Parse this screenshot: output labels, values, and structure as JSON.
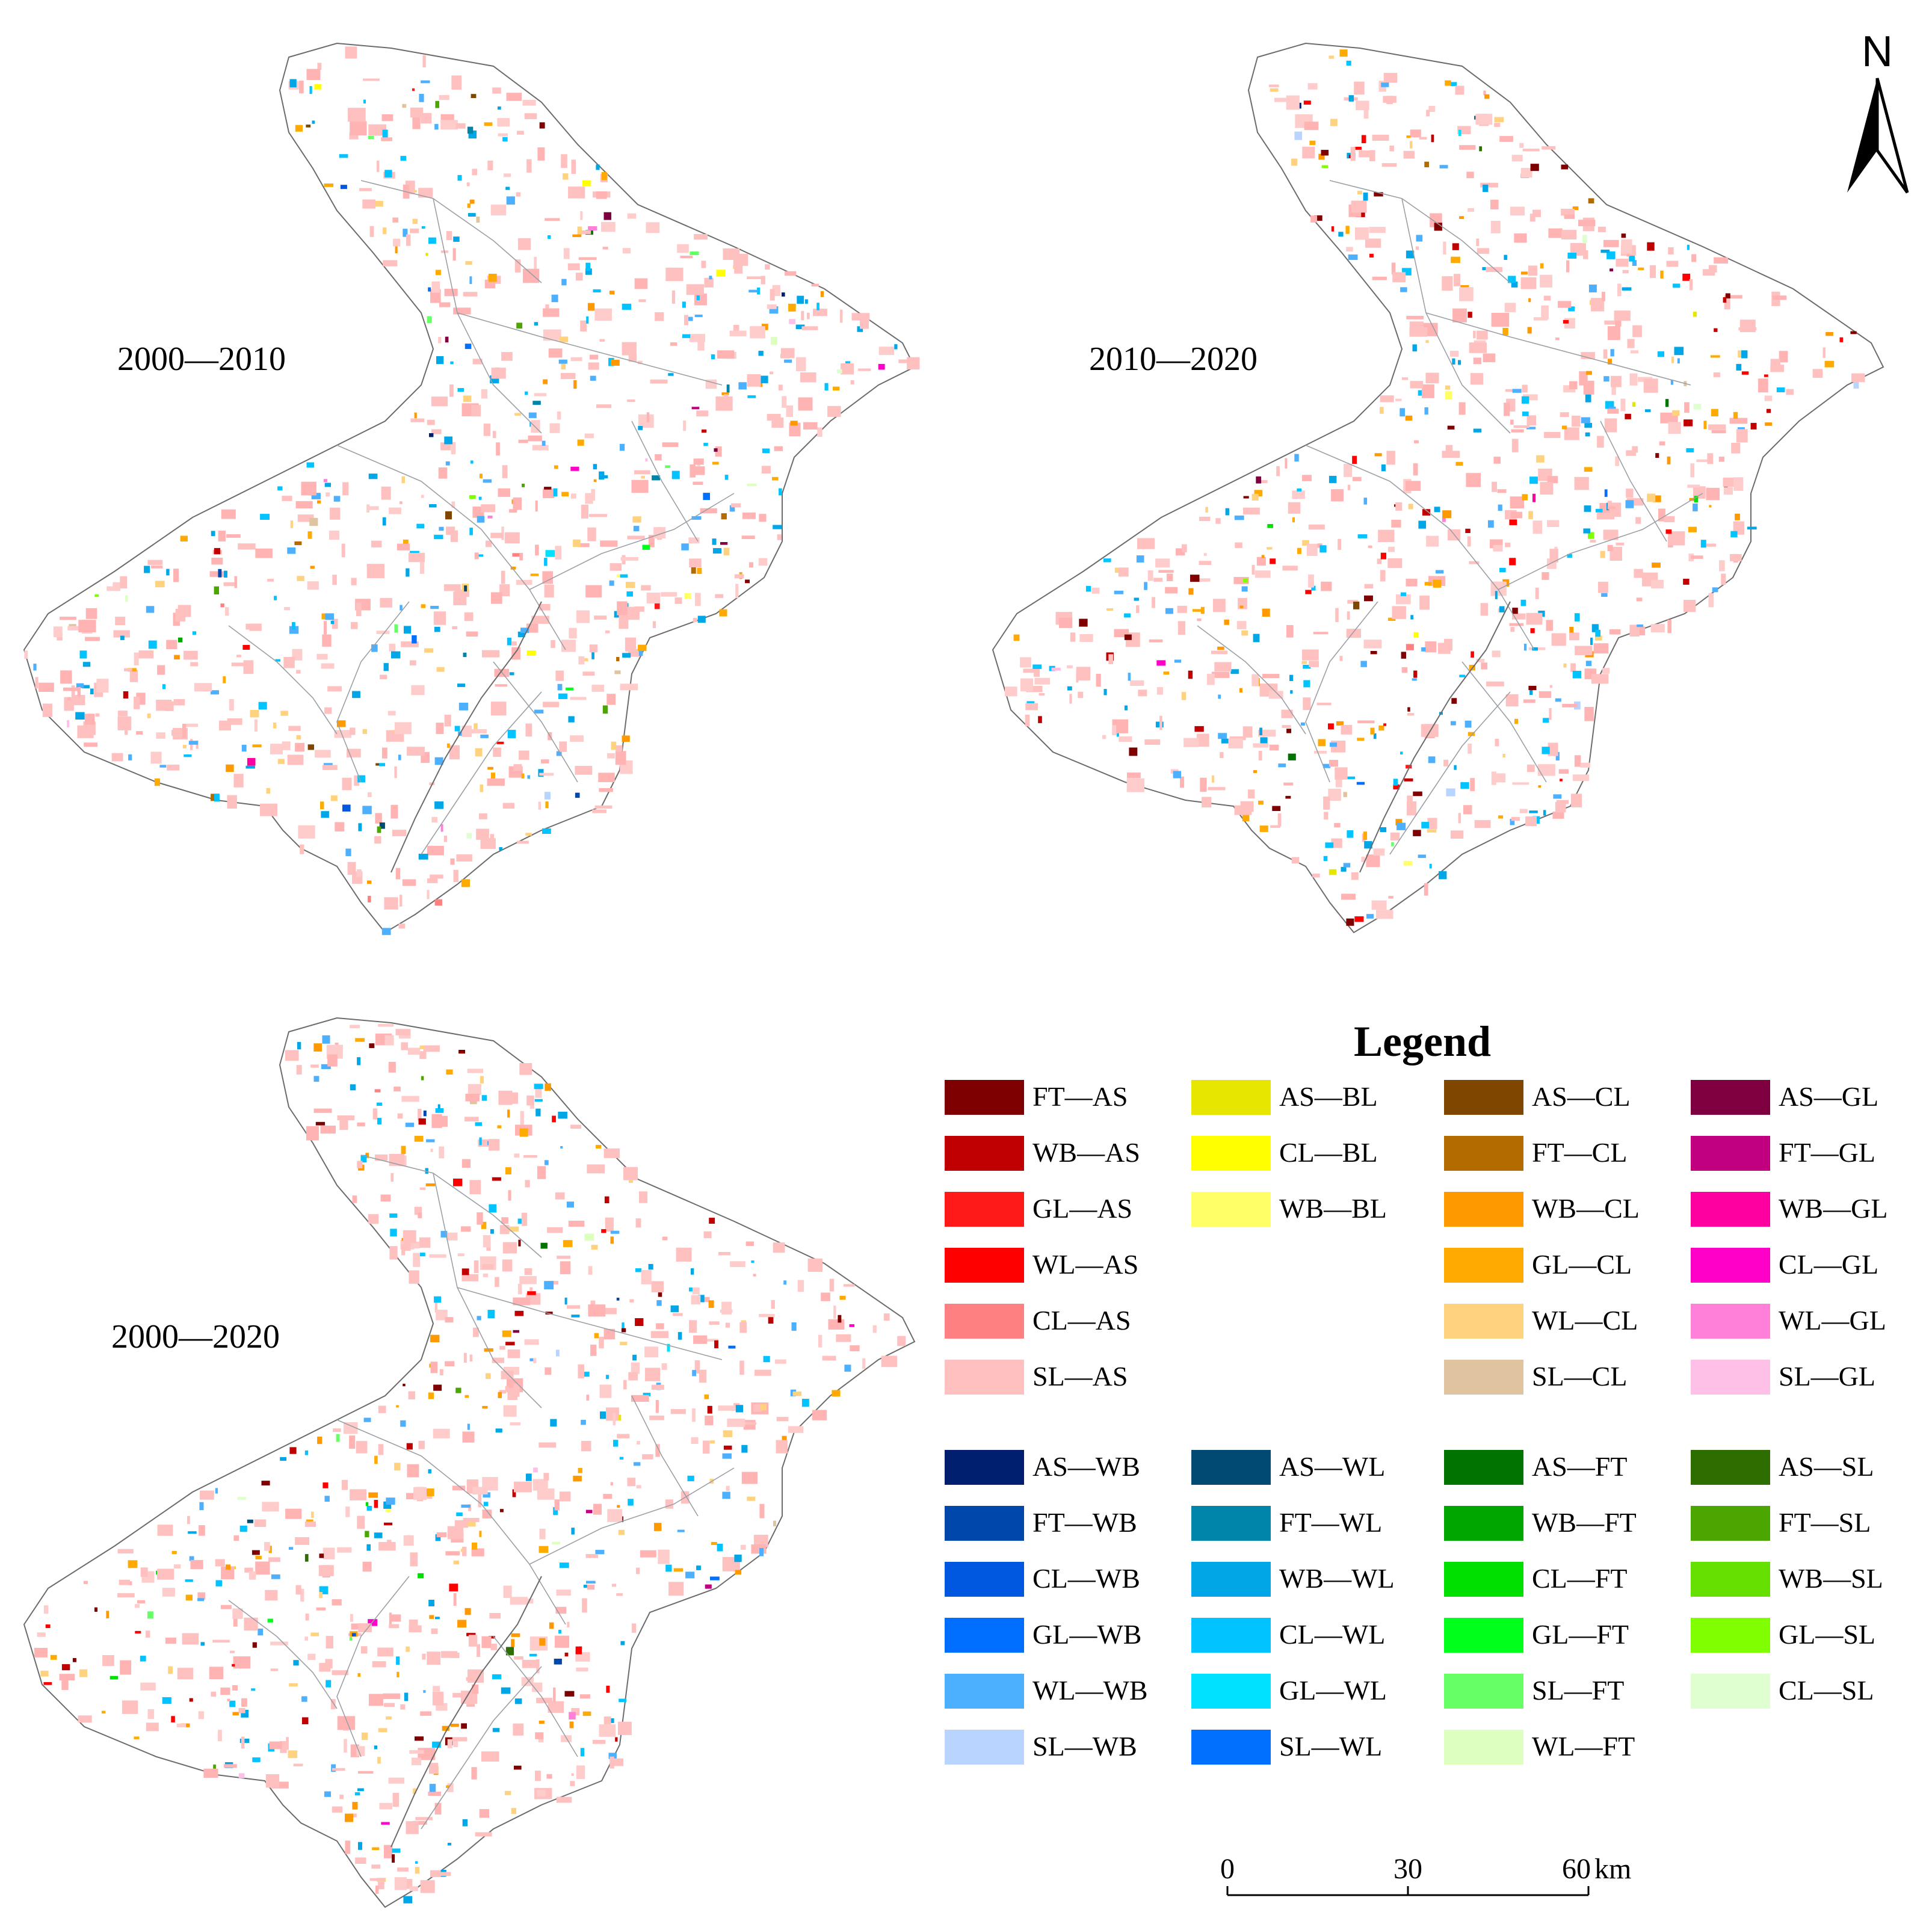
{
  "periods": [
    {
      "label": "2000—2010"
    },
    {
      "label": "2010—2020"
    },
    {
      "label": "2000—2020"
    }
  ],
  "north_arrow": {
    "label": "N"
  },
  "scale_bar": {
    "ticks": [
      "0",
      "30",
      "60"
    ],
    "unit": "km"
  },
  "legend": {
    "title": "Legend",
    "groups": [
      [
        [
          {
            "label": "FT—AS",
            "color": "#7f0000"
          },
          {
            "label": "WB—AS",
            "color": "#c00000"
          },
          {
            "label": "GL—AS",
            "color": "#ff1a1a"
          },
          {
            "label": "WL—AS",
            "color": "#ff0000"
          },
          {
            "label": "CL—AS",
            "color": "#ff8080"
          },
          {
            "label": "SL—AS",
            "color": "#ffc0c0"
          }
        ],
        [
          {
            "label": "AS—BL",
            "color": "#e6e600"
          },
          {
            "label": "CL—BL",
            "color": "#ffff00"
          },
          {
            "label": "WB—BL",
            "color": "#ffff66"
          }
        ],
        [
          {
            "label": "AS—CL",
            "color": "#7f4600"
          },
          {
            "label": "FT—CL",
            "color": "#b36b00"
          },
          {
            "label": "WB—CL",
            "color": "#ff9900"
          },
          {
            "label": "GL—CL",
            "color": "#ffaa00"
          },
          {
            "label": "WL—CL",
            "color": "#ffd27f"
          },
          {
            "label": "SL—CL",
            "color": "#e0c39f"
          }
        ],
        [
          {
            "label": "AS—GL",
            "color": "#7f0040"
          },
          {
            "label": "FT—GL",
            "color": "#c0007f"
          },
          {
            "label": "WB—GL",
            "color": "#ff00a0"
          },
          {
            "label": "CL—GL",
            "color": "#ff00c8"
          },
          {
            "label": "WL—GL",
            "color": "#ff80d9"
          },
          {
            "label": "SL—GL",
            "color": "#ffc0e8"
          }
        ]
      ],
      [
        [
          {
            "label": "AS—WB",
            "color": "#001f6e"
          },
          {
            "label": "FT—WB",
            "color": "#0047ab"
          },
          {
            "label": "CL—WB",
            "color": "#0057e0"
          },
          {
            "label": "GL—WB",
            "color": "#006eff"
          },
          {
            "label": "WL—WB",
            "color": "#4db0ff"
          },
          {
            "label": "SL—WB",
            "color": "#b8d4ff"
          }
        ],
        [
          {
            "label": "AS—WL",
            "color": "#004a73"
          },
          {
            "label": "FT—WL",
            "color": "#0085aa"
          },
          {
            "label": "WB—WL",
            "color": "#00a6e6"
          },
          {
            "label": "CL—WL",
            "color": "#00c3ff"
          },
          {
            "label": "GL—WL",
            "color": "#00e0ff"
          },
          {
            "label": "SL—WL",
            "color": "#0070ff"
          }
        ],
        [
          {
            "label": "AS—FT",
            "color": "#007300"
          },
          {
            "label": "WB—FT",
            "color": "#00a600"
          },
          {
            "label": "CL—FT",
            "color": "#00e000"
          },
          {
            "label": "GL—FT",
            "color": "#00ff1a"
          },
          {
            "label": "SL—FT",
            "color": "#66ff66"
          },
          {
            "label": "WL—FT",
            "color": "#ddffc0"
          }
        ],
        [
          {
            "label": "AS—SL",
            "color": "#2e6e00"
          },
          {
            "label": "FT—SL",
            "color": "#4ca600"
          },
          {
            "label": "WB—SL",
            "color": "#66e000"
          },
          {
            "label": "GL—SL",
            "color": "#80ff00"
          },
          {
            "label": "CL—SL",
            "color": "#e0ffd0"
          }
        ]
      ]
    ]
  }
}
